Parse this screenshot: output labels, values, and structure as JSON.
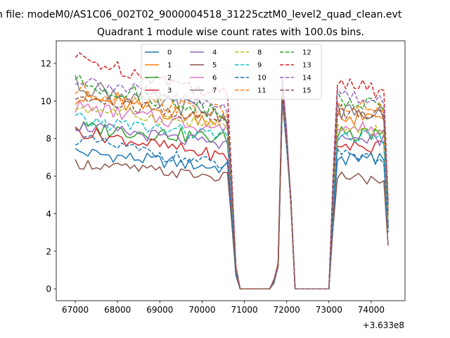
{
  "chart_data": {
    "type": "line",
    "suptitle": "n file: modeM0/AS1C06_002T02_9000004518_31225cztM0_level2_quad_clean.evt",
    "title": "Quadrant 1 module wise count rates with 100.0s bins.",
    "xlabel": "",
    "ylabel": "",
    "x_offset_label": "+3.633e8",
    "xlim": [
      66550,
      74800
    ],
    "ylim": [
      -0.63,
      13.2
    ],
    "x_ticks": [
      67000,
      68000,
      69000,
      70000,
      71000,
      72000,
      73000,
      74000
    ],
    "x_tick_labels": [
      "67000",
      "68000",
      "69000",
      "70000",
      "71000",
      "72000",
      "73000",
      "74000"
    ],
    "y_ticks": [
      0,
      2,
      4,
      6,
      8,
      10,
      12
    ],
    "y_tick_labels": [
      "0",
      "2",
      "4",
      "6",
      "8",
      "10",
      "12"
    ],
    "grid": false,
    "legend_position": "top-center",
    "legend_columns": 4,
    "time_segments": [
      {
        "start": 67000,
        "count": 37,
        "step": 100
      },
      {
        "start": 70700,
        "count": 15,
        "step": 100
      },
      {
        "start": 72200,
        "count": 9,
        "step": 100
      },
      {
        "start": 73100,
        "count": 14,
        "step": 100
      }
    ],
    "series": [
      {
        "name": "0",
        "color": "#1f77b4",
        "dash": "solid",
        "base1": 7.3,
        "end1": 6.4,
        "amp": 0.35,
        "base2": 6.9,
        "end2": 6.9,
        "peak": 10.3,
        "last": 3.2
      },
      {
        "name": "1",
        "color": "#ff7f0e",
        "dash": "solid",
        "base1": 10.2,
        "end1": 8.9,
        "amp": 0.45,
        "base2": 9.2,
        "end2": 9.0,
        "peak": 10.4,
        "last": 3.9
      },
      {
        "name": "2",
        "color": "#2ca02c",
        "dash": "solid",
        "base1": 8.6,
        "end1": 8.0,
        "amp": 0.4,
        "base2": 8.3,
        "end2": 8.1,
        "peak": 10.2,
        "last": 3.4
      },
      {
        "name": "3",
        "color": "#d62728",
        "dash": "solid",
        "base1": 8.4,
        "end1": 7.0,
        "amp": 0.35,
        "base2": 7.7,
        "end2": 7.5,
        "peak": 10.1,
        "last": 3.3
      },
      {
        "name": "4",
        "color": "#9467bd",
        "dash": "solid",
        "base1": 8.7,
        "end1": 7.6,
        "amp": 0.35,
        "base2": 8.0,
        "end2": 7.9,
        "peak": 11.2,
        "last": 3.5
      },
      {
        "name": "5",
        "color": "#8c564b",
        "dash": "solid",
        "base1": 6.7,
        "end1": 5.9,
        "amp": 0.3,
        "base2": 6.1,
        "end2": 5.7,
        "peak": 10.0,
        "last": 2.3
      },
      {
        "name": "6",
        "color": "#e377c2",
        "dash": "solid",
        "base1": 9.7,
        "end1": 8.5,
        "amp": 0.4,
        "base2": 8.6,
        "end2": 8.4,
        "peak": 10.2,
        "last": 3.6
      },
      {
        "name": "7",
        "color": "#7f7f7f",
        "dash": "solid",
        "base1": 10.9,
        "end1": 9.2,
        "amp": 0.5,
        "base2": 9.6,
        "end2": 9.2,
        "peak": 10.6,
        "last": 4.1
      },
      {
        "name": "8",
        "color": "#bcbd22",
        "dash": "dashed",
        "base1": 9.7,
        "end1": 8.6,
        "amp": 0.35,
        "base2": 8.5,
        "end2": 8.3,
        "peak": 10.3,
        "last": 3.7
      },
      {
        "name": "9",
        "color": "#17becf",
        "dash": "dashed",
        "base1": 9.0,
        "end1": 8.1,
        "amp": 0.4,
        "base2": 8.1,
        "end2": 8.0,
        "peak": 10.2,
        "last": 3.4
      },
      {
        "name": "10",
        "color": "#1f77b4",
        "dash": "dashed",
        "base1": 8.0,
        "end1": 6.5,
        "amp": 0.35,
        "base2": 7.2,
        "end2": 6.9,
        "peak": 10.1,
        "last": 3.0
      },
      {
        "name": "11",
        "color": "#ff7f0e",
        "dash": "dashed",
        "base1": 10.6,
        "end1": 9.3,
        "amp": 0.45,
        "base2": 9.9,
        "end2": 9.6,
        "peak": 10.7,
        "last": 4.3
      },
      {
        "name": "12",
        "color": "#2ca02c",
        "dash": "dashed",
        "base1": 11.0,
        "end1": 9.4,
        "amp": 0.45,
        "base2": 10.2,
        "end2": 9.8,
        "peak": 10.8,
        "last": 4.4
      },
      {
        "name": "13",
        "color": "#d62728",
        "dash": "dashed",
        "base1": 12.3,
        "end1": 10.3,
        "amp": 0.4,
        "base2": 11.1,
        "end2": 10.4,
        "peak": 10.9,
        "last": 4.7
      },
      {
        "name": "14",
        "color": "#9467bd",
        "dash": "dashed",
        "base1": 11.2,
        "end1": 9.6,
        "amp": 0.4,
        "base2": 10.4,
        "end2": 10.0,
        "peak": 11.0,
        "last": 4.5
      },
      {
        "name": "15",
        "color": "#8c564b",
        "dash": "dashed",
        "base1": 10.2,
        "end1": 8.9,
        "amp": 0.4,
        "base2": 9.5,
        "end2": 9.1,
        "peak": 10.5,
        "last": 4.0
      }
    ]
  }
}
